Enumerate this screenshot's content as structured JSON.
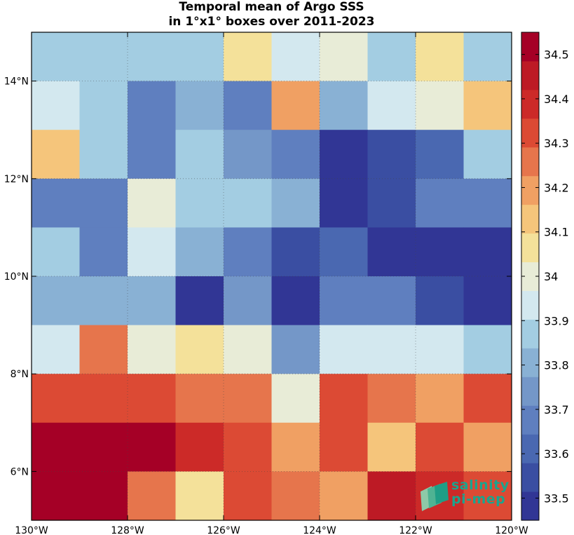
{
  "chart_data": {
    "type": "heatmap",
    "title": "Temporal mean of Argo SSS",
    "subtitle": "in 1°x1° boxes over 2011-2023",
    "x_ticks": [
      "130°W",
      "128°W",
      "126°W",
      "124°W",
      "122°W",
      "120°W"
    ],
    "y_ticks": [
      "6°N",
      "8°N",
      "10°N",
      "12°N",
      "14°N"
    ],
    "x_tick_values": [
      -130,
      -128,
      -126,
      -124,
      -122,
      -120
    ],
    "y_tick_values": [
      6,
      8,
      10,
      12,
      14
    ],
    "xlim": [
      -130,
      -120
    ],
    "ylim": [
      5,
      15
    ],
    "x_cell_centers": [
      -129.5,
      -128.5,
      -127.5,
      -126.5,
      -125.5,
      -124.5,
      -123.5,
      -122.5,
      -121.5,
      -120.5
    ],
    "y_cell_centers": [
      14.5,
      13.5,
      12.5,
      11.5,
      10.5,
      9.5,
      8.5,
      7.5,
      6.5,
      5.5
    ],
    "values": [
      [
        33.9,
        33.85,
        33.9,
        33.9,
        34.05,
        33.95,
        34.0,
        33.9,
        34.05,
        33.85
      ],
      [
        33.95,
        33.85,
        33.7,
        33.8,
        33.7,
        34.2,
        33.8,
        33.95,
        34.0,
        34.1
      ],
      [
        34.1,
        33.9,
        33.7,
        33.85,
        33.75,
        33.65,
        33.5,
        33.55,
        33.6,
        33.85
      ],
      [
        33.65,
        33.7,
        34.0,
        33.9,
        33.9,
        33.8,
        33.5,
        33.55,
        33.7,
        33.65
      ],
      [
        33.9,
        33.7,
        33.95,
        33.8,
        33.65,
        33.55,
        33.6,
        33.5,
        33.5,
        33.5
      ],
      [
        33.8,
        33.8,
        33.8,
        33.5,
        33.75,
        33.5,
        33.65,
        33.7,
        33.55,
        33.5
      ],
      [
        33.95,
        34.25,
        34.0,
        34.05,
        34.0,
        33.75,
        33.95,
        33.95,
        33.95,
        33.9
      ],
      [
        34.35,
        34.35,
        34.35,
        34.25,
        34.25,
        34.0,
        34.35,
        34.25,
        34.2,
        34.3
      ],
      [
        34.5,
        34.5,
        34.5,
        34.4,
        34.35,
        34.2,
        34.35,
        34.1,
        34.3,
        34.2
      ],
      [
        34.5,
        34.5,
        34.25,
        34.05,
        34.3,
        34.25,
        34.2,
        34.45,
        34.4,
        34.3
      ]
    ],
    "colorbar": {
      "vmin": 33.45,
      "vmax": 34.55,
      "tick_values": [
        33.5,
        33.6,
        33.7,
        33.8,
        33.9,
        34.0,
        34.1,
        34.2,
        34.3,
        34.4,
        34.5
      ],
      "tick_labels": [
        "33.5",
        "33.6",
        "33.7",
        "33.8",
        "33.9",
        "34",
        "34.1",
        "34.2",
        "34.3",
        "34.4",
        "34.5"
      ],
      "colors": [
        "#313695",
        "#3a4ea2",
        "#4a68b1",
        "#5f7fbf",
        "#7497c8",
        "#89b1d4",
        "#a3cde2",
        "#d3e8ef",
        "#e8ecd7",
        "#f4e19a",
        "#f5c57b",
        "#f0a063",
        "#e6754c",
        "#dc4a34",
        "#cc2a28",
        "#bd1a25",
        "#a50026"
      ]
    },
    "grid": true
  },
  "logo": {
    "line1": "salinity",
    "line2": "pi-mep"
  }
}
